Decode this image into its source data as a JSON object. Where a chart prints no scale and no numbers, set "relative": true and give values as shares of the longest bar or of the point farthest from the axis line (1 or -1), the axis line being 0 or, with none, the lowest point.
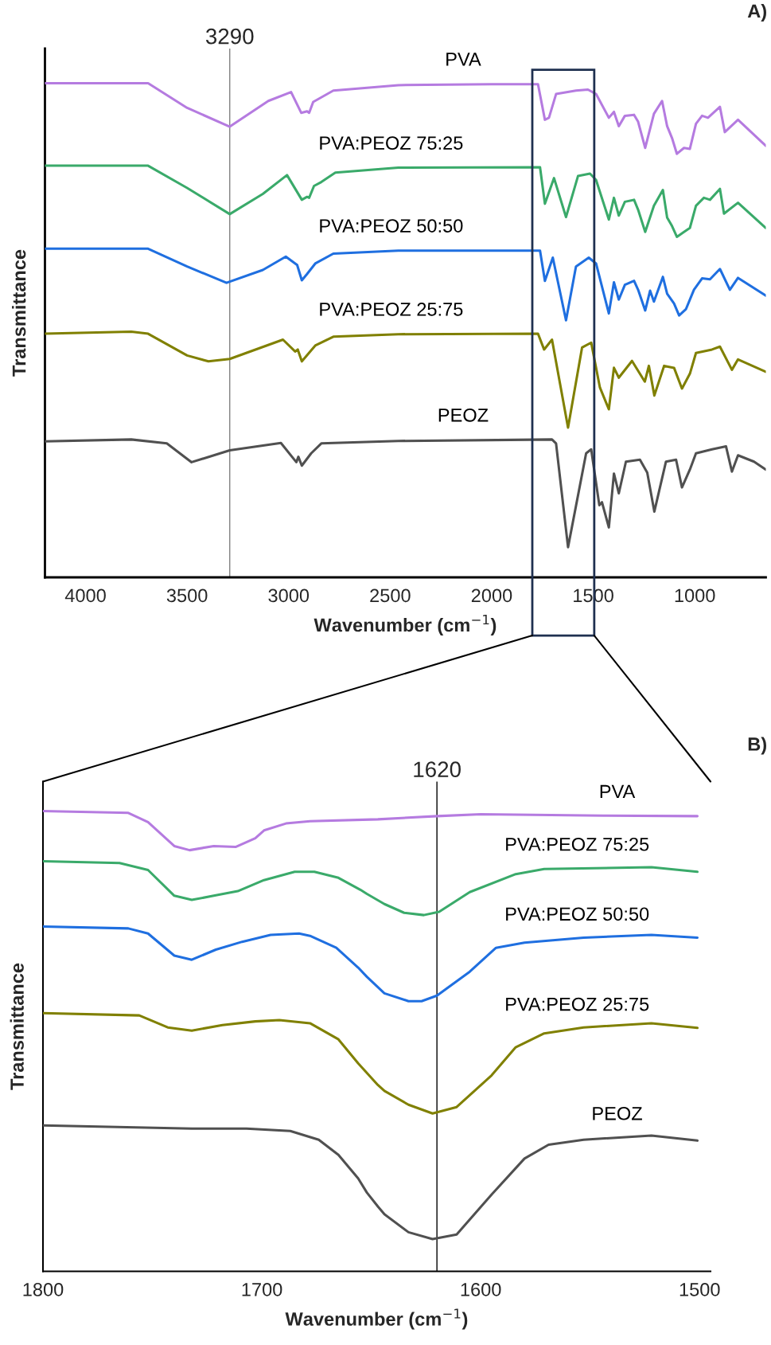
{
  "chart_data": [
    {
      "type": "line",
      "relative": true,
      "xlabel": "Wavenumber (cm$^{−1}$)",
      "ylabel": "Transmittance",
      "xlim": [
        4200,
        650
      ],
      "xticks": [
        4000,
        3500,
        3000,
        2500,
        2000,
        1500,
        1000
      ],
      "annotations": [
        "A)"
      ],
      "ref_lines": [
        {
          "axis": "x",
          "value": 3290,
          "label": "3290",
          "color": "#808080"
        }
      ],
      "series": [
        {
          "name": "PVA",
          "color": "#b57be0",
          "x": [
            4200,
            3692,
            3500,
            3290,
            3100,
            2988,
            2938,
            2909,
            2899,
            2879,
            2780,
            2460,
            2000,
            1772,
            1738,
            1718,
            1683,
            1585,
            1526,
            1486,
            1423,
            1398,
            1374,
            1344,
            1299,
            1279,
            1244,
            1201,
            1161,
            1136,
            1112,
            1088,
            1053,
            1024,
            994,
            964,
            935,
            876,
            852,
            787,
            650
          ],
          "values": [
            1.0,
            1.0,
            0.95,
            0.912,
            0.964,
            0.982,
            0.94,
            0.943,
            0.94,
            0.962,
            0.985,
            0.996,
            0.998,
            0.998,
            0.926,
            0.93,
            0.978,
            0.985,
            0.987,
            0.978,
            0.93,
            0.942,
            0.913,
            0.934,
            0.936,
            0.922,
            0.869,
            0.938,
            0.964,
            0.913,
            0.889,
            0.857,
            0.869,
            0.867,
            0.918,
            0.934,
            0.93,
            0.952,
            0.901,
            0.926,
            0.873
          ]
        },
        {
          "name": "PVA:PEOZ 75:25",
          "color": "#3aaa6a",
          "x": [
            4200,
            3692,
            3500,
            3290,
            3127,
            3008,
            2935,
            2909,
            2899,
            2875,
            2839,
            2770,
            2460,
            1762,
            1738,
            1693,
            1634,
            1575,
            1516,
            1486,
            1423,
            1398,
            1374,
            1344,
            1299,
            1279,
            1244,
            1201,
            1157,
            1136,
            1112,
            1088,
            1053,
            1024,
            994,
            955,
            925,
            876,
            856,
            787,
            650
          ],
          "values": [
            0.833,
            0.833,
            0.788,
            0.735,
            0.776,
            0.814,
            0.764,
            0.77,
            0.768,
            0.792,
            0.8,
            0.819,
            0.829,
            0.83,
            0.756,
            0.808,
            0.729,
            0.812,
            0.817,
            0.804,
            0.724,
            0.768,
            0.732,
            0.76,
            0.764,
            0.744,
            0.699,
            0.752,
            0.784,
            0.728,
            0.711,
            0.689,
            0.699,
            0.707,
            0.752,
            0.768,
            0.764,
            0.786,
            0.736,
            0.758,
            0.707
          ]
        },
        {
          "name": "PVA:PEOZ 50:50",
          "color": "#1f6fe0",
          "x": [
            4200,
            3692,
            3500,
            3306,
            3127,
            3014,
            2958,
            2935,
            2909,
            2869,
            2780,
            2460,
            1762,
            1738,
            1699,
            1634,
            1585,
            1522,
            1486,
            1423,
            1398,
            1374,
            1344,
            1299,
            1279,
            1244,
            1220,
            1201,
            1157,
            1136,
            1102,
            1077,
            1043,
            1004,
            964,
            925,
            876,
            827,
            787,
            650
          ],
          "values": [
            0.665,
            0.665,
            0.629,
            0.596,
            0.622,
            0.649,
            0.632,
            0.601,
            0.614,
            0.635,
            0.655,
            0.661,
            0.661,
            0.6,
            0.647,
            0.52,
            0.629,
            0.647,
            0.635,
            0.534,
            0.597,
            0.562,
            0.592,
            0.6,
            0.582,
            0.54,
            0.58,
            0.558,
            0.608,
            0.574,
            0.554,
            0.53,
            0.543,
            0.582,
            0.605,
            0.603,
            0.624,
            0.582,
            0.606,
            0.57
          ]
        },
        {
          "name": "PVA:PEOZ 25:75",
          "color": "#808000",
          "x": [
            4200,
            3775,
            3692,
            3500,
            3395,
            3290,
            3028,
            2968,
            2955,
            2935,
            2869,
            2780,
            2460,
            1772,
            1742,
            1703,
            1624,
            1555,
            1510,
            1467,
            1423,
            1398,
            1374,
            1309,
            1246,
            1226,
            1199,
            1151,
            1102,
            1063,
            1024,
            994,
            915,
            876,
            817,
            787,
            650
          ],
          "values": [
            0.493,
            0.497,
            0.493,
            0.449,
            0.437,
            0.442,
            0.481,
            0.457,
            0.461,
            0.437,
            0.469,
            0.487,
            0.492,
            0.493,
            0.461,
            0.481,
            0.303,
            0.465,
            0.475,
            0.384,
            0.34,
            0.424,
            0.404,
            0.438,
            0.396,
            0.428,
            0.368,
            0.428,
            0.424,
            0.382,
            0.412,
            0.454,
            0.461,
            0.467,
            0.42,
            0.441,
            0.416
          ]
        },
        {
          "name": "PEOZ",
          "color": "#505050",
          "x": [
            4200,
            3775,
            3600,
            3478,
            3290,
            3038,
            2962,
            2952,
            2935,
            2889,
            2839,
            2460,
            1703,
            1683,
            1624,
            1535,
            1510,
            1470,
            1457,
            1423,
            1398,
            1374,
            1339,
            1270,
            1234,
            1199,
            1142,
            1092,
            1063,
            1024,
            994,
            915,
            846,
            817,
            787,
            708,
            650
          ],
          "values": [
            0.275,
            0.279,
            0.271,
            0.233,
            0.257,
            0.272,
            0.233,
            0.244,
            0.226,
            0.251,
            0.271,
            0.276,
            0.279,
            0.271,
            0.061,
            0.251,
            0.259,
            0.146,
            0.152,
            0.101,
            0.21,
            0.17,
            0.234,
            0.238,
            0.212,
            0.133,
            0.234,
            0.238,
            0.182,
            0.218,
            0.251,
            0.259,
            0.265,
            0.214,
            0.247,
            0.234,
            0.218
          ]
        }
      ]
    },
    {
      "type": "line",
      "relative": true,
      "xlabel": "Wavenumber (cm$^{−1}$)",
      "ylabel": "Transmittance",
      "xlim": [
        1800,
        1495
      ],
      "xticks": [
        1800,
        1700,
        1600,
        1500
      ],
      "annotations": [
        "B)"
      ],
      "ref_lines": [
        {
          "axis": "x",
          "value": 1620,
          "label": "1620",
          "color": "#000000"
        }
      ],
      "series": [
        {
          "name": "PVA",
          "color": "#b57be0",
          "x": [
            1800,
            1761,
            1752,
            1740,
            1733,
            1722,
            1712,
            1703,
            1699,
            1689,
            1678,
            1647,
            1620,
            1600,
            1544,
            1501
          ],
          "values": [
            1.0,
            0.996,
            0.976,
            0.924,
            0.915,
            0.924,
            0.922,
            0.941,
            0.958,
            0.973,
            0.978,
            0.982,
            0.989,
            0.993,
            0.99,
            0.989
          ]
        },
        {
          "name": "PVA:PEOZ 75:25",
          "color": "#3aaa6a",
          "x": [
            1800,
            1765,
            1752,
            1740,
            1732,
            1721,
            1711,
            1699,
            1685,
            1676,
            1665,
            1655,
            1652,
            1644,
            1635,
            1626,
            1619,
            1605,
            1584,
            1571,
            1522,
            1501
          ],
          "values": [
            0.891,
            0.887,
            0.872,
            0.816,
            0.807,
            0.817,
            0.826,
            0.85,
            0.868,
            0.868,
            0.855,
            0.829,
            0.82,
            0.798,
            0.779,
            0.774,
            0.781,
            0.824,
            0.863,
            0.874,
            0.878,
            0.868
          ]
        },
        {
          "name": "PVA:PEOZ 50:50",
          "color": "#1f6fe0",
          "x": [
            1800,
            1761,
            1752,
            1740,
            1732,
            1721,
            1709,
            1696,
            1683,
            1678,
            1666,
            1656,
            1652,
            1644,
            1633,
            1627,
            1620,
            1605,
            1593,
            1580,
            1553,
            1522,
            1501
          ],
          "values": [
            0.749,
            0.745,
            0.734,
            0.686,
            0.677,
            0.699,
            0.716,
            0.731,
            0.734,
            0.729,
            0.703,
            0.66,
            0.64,
            0.604,
            0.587,
            0.587,
            0.599,
            0.651,
            0.703,
            0.714,
            0.725,
            0.731,
            0.725
          ]
        },
        {
          "name": "PVA:PEOZ 25:75",
          "color": "#808000",
          "x": [
            1800,
            1756,
            1743,
            1732,
            1718,
            1703,
            1692,
            1678,
            1665,
            1656,
            1647,
            1644,
            1633,
            1622,
            1611,
            1595,
            1584,
            1571,
            1553,
            1522,
            1501
          ],
          "values": [
            0.561,
            0.556,
            0.53,
            0.523,
            0.535,
            0.543,
            0.546,
            0.539,
            0.504,
            0.452,
            0.405,
            0.392,
            0.362,
            0.343,
            0.357,
            0.426,
            0.487,
            0.517,
            0.53,
            0.539,
            0.529
          ]
        },
        {
          "name": "PEOZ",
          "color": "#505050",
          "x": [
            1800,
            1732,
            1707,
            1687,
            1674,
            1665,
            1656,
            1652,
            1647,
            1644,
            1633,
            1622,
            1611,
            1595,
            1580,
            1569,
            1553,
            1522,
            1501
          ],
          "values": [
            0.317,
            0.31,
            0.31,
            0.305,
            0.286,
            0.253,
            0.202,
            0.171,
            0.141,
            0.124,
            0.085,
            0.07,
            0.08,
            0.167,
            0.245,
            0.275,
            0.286,
            0.295,
            0.284
          ]
        }
      ]
    }
  ]
}
